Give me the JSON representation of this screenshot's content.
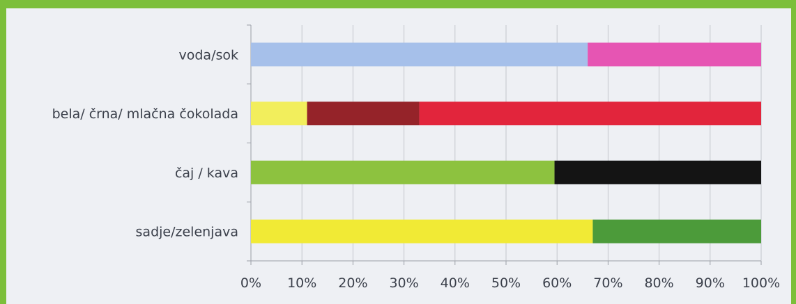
{
  "chart_data": {
    "type": "bar",
    "orientation": "horizontal",
    "stacked": true,
    "xlim": [
      0,
      100
    ],
    "x_tick_labels": [
      "0%",
      "10%",
      "20%",
      "30%",
      "40%",
      "50%",
      "60%",
      "70%",
      "80%",
      "90%",
      "100%"
    ],
    "grid": "vertical",
    "legend": "none",
    "rows": [
      {
        "label": "voda/sok",
        "segments": [
          {
            "value": 66,
            "color": "#a6c0ea"
          },
          {
            "value": 34,
            "color": "#e655b3"
          }
        ]
      },
      {
        "label": "bela/ črna/ mlačna čokolada",
        "segments": [
          {
            "value": 11,
            "color": "#f2ee5c"
          },
          {
            "value": 22,
            "color": "#952329"
          },
          {
            "value": 67,
            "color": "#e2253c"
          }
        ]
      },
      {
        "label": "čaj / kava",
        "segments": [
          {
            "value": 59.5,
            "color": "#8dc23f"
          },
          {
            "value": 40.5,
            "color": "#141414"
          }
        ]
      },
      {
        "label": "sadje/zelenjava",
        "segments": [
          {
            "value": 67,
            "color": "#f1ea35"
          },
          {
            "value": 33,
            "color": "#4c9b3a"
          }
        ]
      }
    ]
  }
}
